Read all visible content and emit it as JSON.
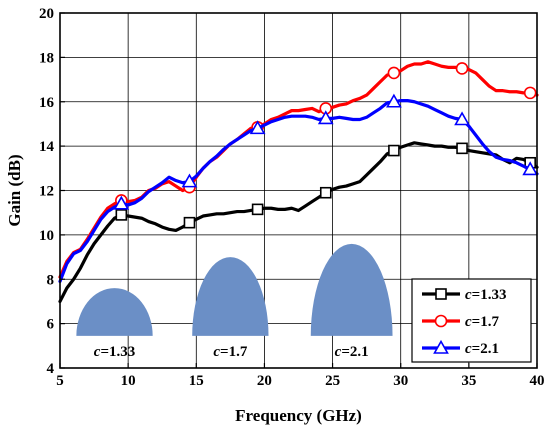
{
  "chart_data": {
    "type": "line",
    "xlabel": "Frequency (GHz)",
    "ylabel": "Gain (dB)",
    "xlim": [
      5,
      40
    ],
    "ylim": [
      4,
      20
    ],
    "xticks": [
      "5",
      "10",
      "15",
      "20",
      "25",
      "30",
      "35",
      "40"
    ],
    "yticks": [
      "4",
      "6",
      "8",
      "10",
      "12",
      "14",
      "16",
      "18",
      "20"
    ],
    "grid": true,
    "legend_position": "bottom-right",
    "series": [
      {
        "name": "c=1.33",
        "name_var": "c",
        "name_value": "=1.33",
        "color": "#000000",
        "marker": "square",
        "marker_x": [
          9.5,
          14.5,
          19.5,
          24.5,
          29.5,
          34.5,
          39.5
        ],
        "x": [
          5,
          5.5,
          6,
          6.5,
          7,
          7.5,
          8,
          8.5,
          9,
          9.5,
          10,
          10.5,
          11,
          11.5,
          12,
          12.5,
          13,
          13.5,
          14,
          14.5,
          15,
          15.5,
          16,
          16.5,
          17,
          17.5,
          18,
          18.5,
          19,
          19.5,
          20,
          20.5,
          21,
          21.5,
          22,
          22.5,
          23,
          23.5,
          24,
          24.5,
          25,
          25.5,
          26,
          26.5,
          27,
          27.5,
          28,
          28.5,
          29,
          29.5,
          30,
          30.5,
          31,
          31.5,
          32,
          32.5,
          33,
          33.5,
          34,
          34.5,
          35,
          35.5,
          36,
          36.5,
          37,
          37.5,
          38,
          38.5,
          39,
          39.5,
          40
        ],
        "values": [
          7.0,
          7.6,
          8.0,
          8.5,
          9.1,
          9.6,
          10.0,
          10.4,
          10.75,
          10.9,
          10.85,
          10.8,
          10.75,
          10.6,
          10.5,
          10.35,
          10.25,
          10.2,
          10.35,
          10.55,
          10.7,
          10.85,
          10.9,
          10.95,
          10.95,
          11.0,
          11.05,
          11.05,
          11.1,
          11.15,
          11.2,
          11.2,
          11.15,
          11.15,
          11.2,
          11.1,
          11.3,
          11.5,
          11.7,
          11.9,
          12.05,
          12.15,
          12.2,
          12.3,
          12.4,
          12.7,
          13.0,
          13.3,
          13.65,
          13.8,
          13.95,
          14.05,
          14.15,
          14.1,
          14.05,
          14.0,
          14.0,
          13.95,
          13.95,
          13.9,
          13.8,
          13.75,
          13.7,
          13.65,
          13.6,
          13.4,
          13.25,
          13.45,
          13.4,
          13.25,
          13.05
        ]
      },
      {
        "name": "c=1.7",
        "name_var": "c",
        "name_value": "=1.7",
        "color": "#ff0000",
        "marker": "circle",
        "marker_x": [
          9.5,
          14.5,
          19.5,
          24.5,
          29.5,
          34.5,
          39.5
        ],
        "x": [
          5,
          5.5,
          6,
          6.5,
          7,
          7.5,
          8,
          8.5,
          9,
          9.5,
          10,
          10.5,
          11,
          11.5,
          12,
          12.5,
          13,
          13.5,
          14,
          14.5,
          15,
          15.5,
          16,
          16.5,
          17,
          17.5,
          18,
          18.5,
          19,
          19.5,
          20,
          20.5,
          21,
          21.5,
          22,
          22.5,
          23,
          23.5,
          24,
          24.5,
          25,
          25.5,
          26,
          26.5,
          27,
          27.5,
          28,
          28.5,
          29,
          29.5,
          30,
          30.5,
          31,
          31.5,
          32,
          32.5,
          33,
          33.5,
          34,
          34.5,
          35,
          35.5,
          36,
          36.5,
          37,
          37.5,
          38,
          38.5,
          39,
          39.5,
          40
        ],
        "values": [
          8.1,
          8.8,
          9.2,
          9.35,
          9.8,
          10.3,
          10.8,
          11.2,
          11.4,
          11.55,
          11.5,
          11.55,
          11.7,
          12.0,
          12.1,
          12.3,
          12.4,
          12.2,
          12.0,
          12.15,
          12.6,
          13.0,
          13.3,
          13.5,
          13.8,
          14.1,
          14.3,
          14.55,
          14.8,
          14.85,
          15.0,
          15.2,
          15.3,
          15.45,
          15.6,
          15.6,
          15.65,
          15.7,
          15.55,
          15.7,
          15.75,
          15.85,
          15.9,
          16.05,
          16.15,
          16.3,
          16.6,
          16.9,
          17.2,
          17.3,
          17.4,
          17.6,
          17.7,
          17.7,
          17.8,
          17.7,
          17.6,
          17.55,
          17.55,
          17.5,
          17.45,
          17.3,
          17.0,
          16.7,
          16.5,
          16.5,
          16.45,
          16.45,
          16.4,
          16.4,
          16.3
        ]
      },
      {
        "name": "c=2.1",
        "name_var": "c",
        "name_value": "=2.1",
        "color": "#0000ff",
        "marker": "triangle",
        "marker_x": [
          9.5,
          14.5,
          19.5,
          24.5,
          29.5,
          34.5,
          39.5
        ],
        "x": [
          5,
          5.5,
          6,
          6.5,
          7,
          7.5,
          8,
          8.5,
          9,
          9.5,
          10,
          10.5,
          11,
          11.5,
          12,
          12.5,
          13,
          13.5,
          14,
          14.5,
          15,
          15.5,
          16,
          16.5,
          17,
          17.5,
          18,
          18.5,
          19,
          19.5,
          20,
          20.5,
          21,
          21.5,
          22,
          22.5,
          23,
          23.5,
          24,
          24.5,
          25,
          25.5,
          26,
          26.5,
          27,
          27.5,
          28,
          28.5,
          29,
          29.5,
          30,
          30.5,
          31,
          31.5,
          32,
          32.5,
          33,
          33.5,
          34,
          34.5,
          35,
          35.5,
          36,
          36.5,
          37,
          37.5,
          38,
          38.5,
          39,
          39.5,
          40
        ],
        "values": [
          7.9,
          8.7,
          9.15,
          9.3,
          9.7,
          10.2,
          10.7,
          11.05,
          11.25,
          11.4,
          11.35,
          11.45,
          11.65,
          11.95,
          12.15,
          12.35,
          12.6,
          12.45,
          12.35,
          12.4,
          12.65,
          13.0,
          13.3,
          13.55,
          13.85,
          14.1,
          14.3,
          14.5,
          14.7,
          14.8,
          14.95,
          15.1,
          15.2,
          15.3,
          15.35,
          15.35,
          15.35,
          15.3,
          15.2,
          15.25,
          15.25,
          15.3,
          15.25,
          15.2,
          15.2,
          15.3,
          15.5,
          15.7,
          15.95,
          16.0,
          16.05,
          16.05,
          16.0,
          15.9,
          15.8,
          15.65,
          15.5,
          15.35,
          15.25,
          15.2,
          14.9,
          14.5,
          14.1,
          13.75,
          13.5,
          13.4,
          13.35,
          13.25,
          13.1,
          12.95,
          12.75
        ]
      }
    ],
    "inset_shapes": [
      {
        "label_var": "c",
        "label_value": "=1.33",
        "color": "#6b8fc6",
        "x_start": 6.2,
        "x_end": 11.8,
        "peak": 7.6,
        "base": 5.45
      },
      {
        "label_var": "c",
        "label_value": "=1.7",
        "color": "#6b8fc6",
        "x_start": 14.7,
        "x_end": 20.3,
        "peak": 9.0,
        "base": 5.45
      },
      {
        "label_var": "c",
        "label_value": "=2.1",
        "color": "#6b8fc6",
        "x_start": 23.4,
        "x_end": 29.4,
        "peak": 9.6,
        "base": 5.45
      }
    ]
  }
}
